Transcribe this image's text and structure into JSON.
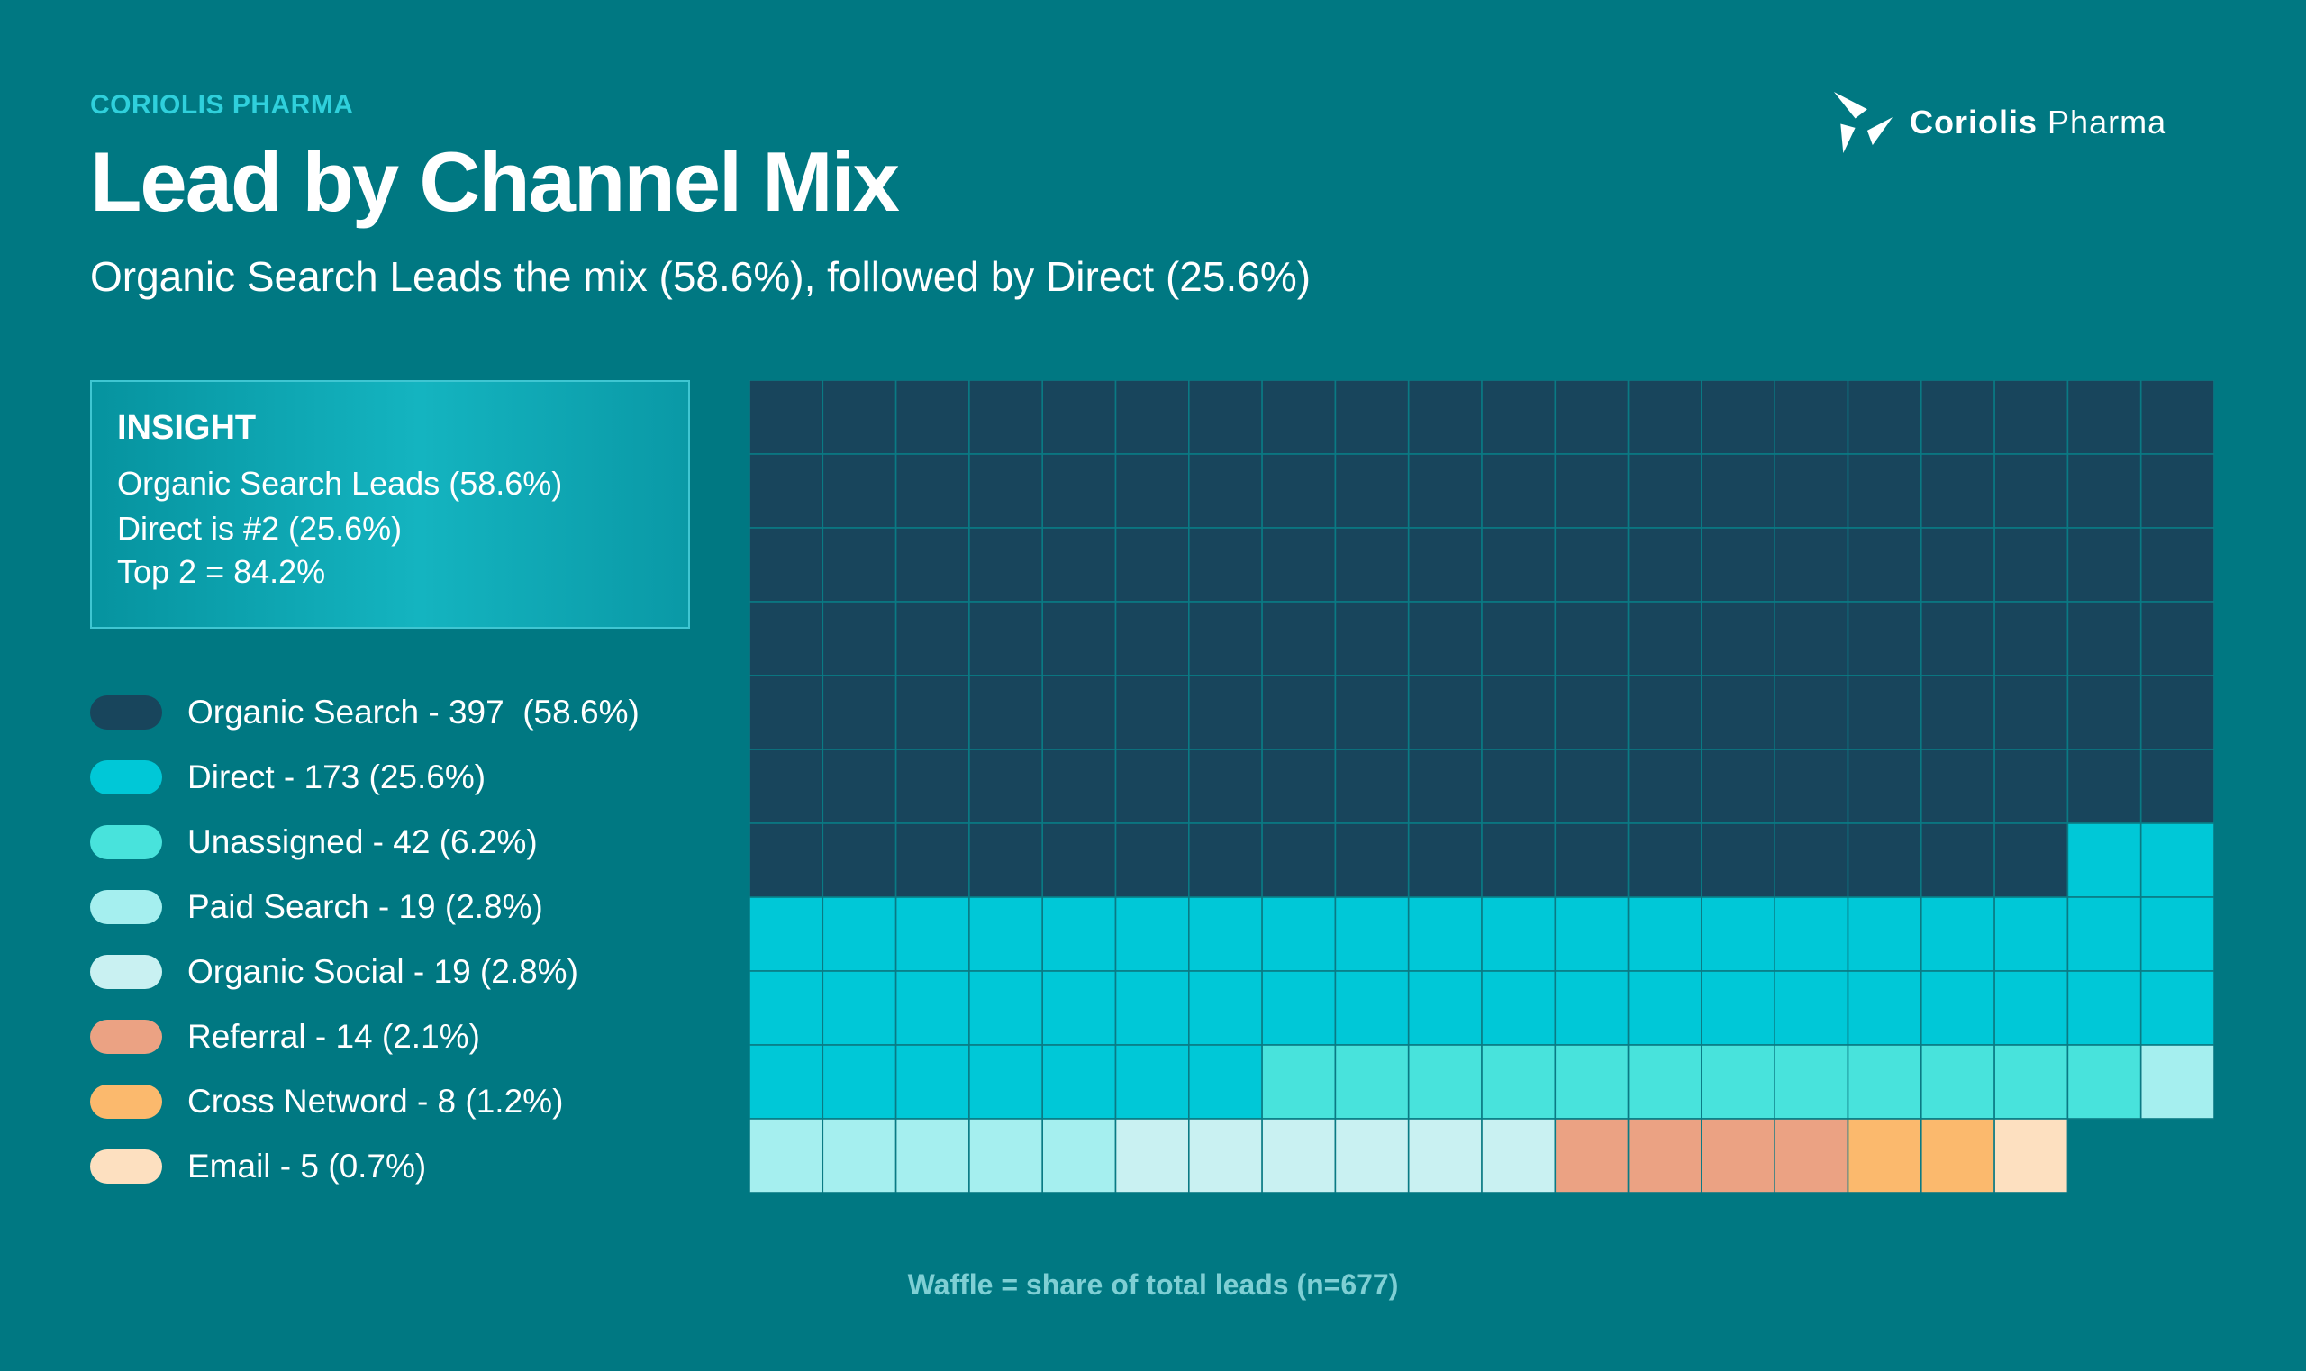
{
  "header": {
    "eyebrow": "CORIOLIS PHARMA",
    "title": "Lead by Channel Mix",
    "subtitle": "Organic Search Leads the mix (58.6%), followed by Direct (25.6%)"
  },
  "logo": {
    "brand_bold": "Coriolis",
    "brand_light": "Pharma",
    "icon": "pinwheel-logo-icon"
  },
  "insight": {
    "heading": "INSIGHT",
    "lines": [
      "Organic Search Leads (58.6%)",
      "Direct is #2 (25.6%)",
      "Top 2 = 84.2%"
    ]
  },
  "legend": [
    {
      "label": "Organic Search - 397  (58.6%)",
      "color": "#18455c"
    },
    {
      "label": "Direct - 173 (25.6%)",
      "color": "#00c8d7"
    },
    {
      "label": "Unassigned - 42 (6.2%)",
      "color": "#48e3dc"
    },
    {
      "label": "Paid Search - 19 (2.8%)",
      "color": "#a5efef"
    },
    {
      "label": "Organic Social - 19 (2.8%)",
      "color": "#c9f1f2"
    },
    {
      "label": "Referral - 14 (2.1%)",
      "color": "#eba283"
    },
    {
      "label": "Cross Netword - 8 (1.2%)",
      "color": "#fbb96d"
    },
    {
      "label": "Email - 5 (0.7%)",
      "color": "#fde0c0"
    }
  ],
  "chart_data": {
    "type": "waffle",
    "grid": {
      "rows": 11,
      "cols": 20
    },
    "total": 677,
    "series": [
      {
        "name": "Organic Search",
        "value": 397,
        "percent": 58.6,
        "cells": 138,
        "color": "#18455c"
      },
      {
        "name": "Direct",
        "value": 173,
        "percent": 25.6,
        "cells": 49,
        "color": "#00c8d7"
      },
      {
        "name": "Unassigned",
        "value": 42,
        "percent": 6.2,
        "cells": 12,
        "color": "#48e3dc"
      },
      {
        "name": "Paid Search",
        "value": 19,
        "percent": 2.8,
        "cells": 6,
        "color": "#a5efef"
      },
      {
        "name": "Organic Social",
        "value": 19,
        "percent": 2.8,
        "cells": 6,
        "color": "#c9f1f2"
      },
      {
        "name": "Referral",
        "value": 14,
        "percent": 2.1,
        "cells": 4,
        "color": "#eba283"
      },
      {
        "name": "Cross Netword",
        "value": 8,
        "percent": 1.2,
        "cells": 2,
        "color": "#fbb96d"
      },
      {
        "name": "Email",
        "value": 5,
        "percent": 0.7,
        "cells": 1,
        "color": "#fde0c0"
      }
    ],
    "footnote": "Waffle = share of total leads (n=677)"
  }
}
